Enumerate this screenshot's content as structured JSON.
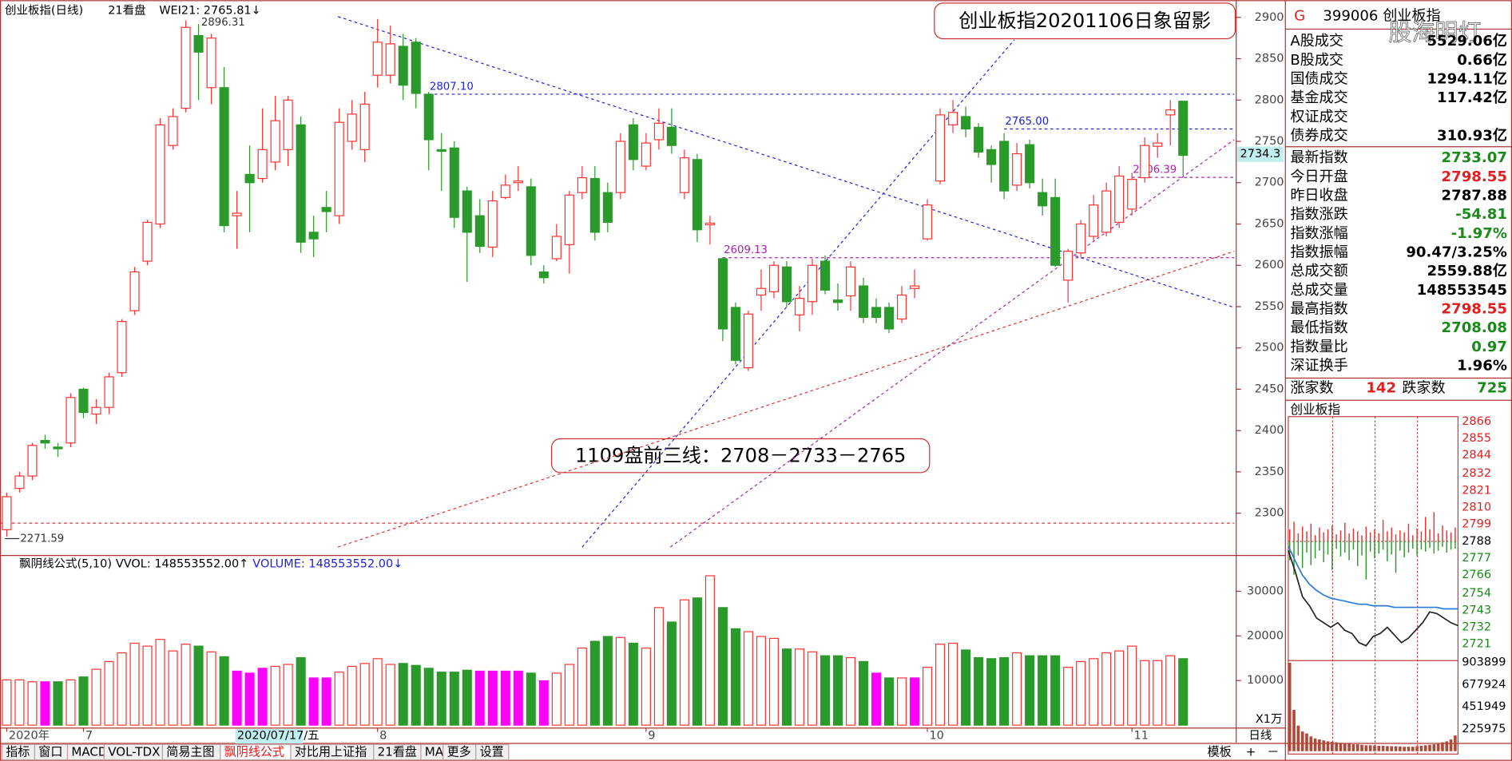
{
  "watermark": "股海明灯",
  "quote": {
    "flag": "G",
    "code": "399006 创业板指",
    "mini_title": "创业板指",
    "rows": [
      {
        "label": "A股成交",
        "value": "5529.06亿"
      },
      {
        "label": "B股成交",
        "value": "0.66亿"
      },
      {
        "label": "国债成交",
        "value": "1294.11亿"
      },
      {
        "label": "基金成交",
        "value": "117.42亿"
      },
      {
        "label": "权证成交"
      },
      {
        "label": "债券成交",
        "value": "310.93亿"
      },
      {
        "label": "最新指数",
        "value": "2733.07",
        "color": "#1a8a1a"
      },
      {
        "label": "今日开盘",
        "value": "2798.55",
        "color": "#e02020"
      },
      {
        "label": "昨日收盘",
        "value": "2787.88"
      },
      {
        "label": "指数涨跌",
        "value": "-54.81",
        "color": "#1a8a1a"
      },
      {
        "label": "指数涨幅",
        "value": "-1.97%",
        "color": "#1a8a1a"
      },
      {
        "label": "指数振幅",
        "value": "90.47/3.25%"
      },
      {
        "label": "总成交额",
        "value": "2559.88亿"
      },
      {
        "label": "总成交量",
        "value": "148553545"
      },
      {
        "label": "最高指数",
        "value": "2798.55",
        "color": "#e02020"
      },
      {
        "label": "最低指数",
        "value": "2708.08",
        "color": "#1a8a1a"
      },
      {
        "label": "指数量比",
        "value": "0.97",
        "color": "#1a8a1a"
      },
      {
        "label": "深证换手",
        "value": "1.96%"
      }
    ],
    "breadth": {
      "up_label": "涨家数",
      "up": 142,
      "down_label": "跌家数",
      "down": 725
    }
  },
  "toolbar": {
    "tabs": [
      "指标",
      "窗口",
      "MACD",
      "VOL-TDX",
      "简易主图",
      "飘阴线公式",
      "对比用上证指",
      "21看盘",
      "MA",
      "更多",
      "设置"
    ],
    "active": 5,
    "right": [
      "模板",
      "+",
      "－"
    ]
  },
  "chart_data": [
    {
      "type": "candlestick",
      "title": "创业板指(日线)",
      "legend_items": [
        "21看盘",
        "WEI21: 2765.81↓"
      ],
      "annotations": [
        "创业板指20201106日象留影",
        "1109盘前三线：2708－2733－2765"
      ],
      "up_color": "#ff3232",
      "down_color": "#2a9a2a",
      "categories": [
        "2020年",
        null,
        null,
        null,
        null,
        null,
        "7",
        null,
        null,
        null,
        null,
        null,
        null,
        null,
        null,
        null,
        null,
        null,
        null,
        null,
        null,
        null,
        null,
        null,
        null,
        null,
        null,
        null,
        null,
        "8",
        null,
        null,
        null,
        null,
        null,
        null,
        null,
        null,
        null,
        null,
        null,
        null,
        null,
        null,
        null,
        null,
        null,
        null,
        null,
        null,
        "9",
        null,
        null,
        null,
        null,
        null,
        null,
        null,
        null,
        null,
        null,
        null,
        null,
        null,
        null,
        null,
        null,
        null,
        null,
        null,
        null,
        null,
        "10",
        null,
        null,
        null,
        null,
        null,
        null,
        null,
        null,
        null,
        null,
        null,
        null,
        null,
        null,
        null,
        "11",
        null,
        null,
        null,
        null
      ],
      "cursor_label": "2020/07/17/五",
      "x_unit": "日线",
      "open": [
        2280,
        2330,
        2345,
        2388,
        2380,
        2385,
        2450,
        2420,
        2428,
        2470,
        2545,
        2605,
        2650,
        2745,
        2790,
        2878,
        2815,
        2815,
        2660,
        2710,
        2705,
        2725,
        2740,
        2770,
        2640,
        2670,
        2660,
        2750,
        2740,
        2830,
        2830,
        2865,
        2870,
        2807,
        2740,
        2742,
        2690,
        2660,
        2622,
        2682,
        2700,
        2695,
        2592,
        2608,
        2625,
        2688,
        2705,
        2688,
        2688,
        2770,
        2720,
        2752,
        2767,
        2688,
        2728,
        2649,
        2608,
        2549,
        2476,
        2564,
        2568,
        2598,
        2540,
        2556,
        2605,
        2558,
        2563,
        2575,
        2549,
        2549,
        2535,
        2572,
        2632,
        2702,
        2770,
        2780,
        2767,
        2740,
        2750,
        2697,
        2746,
        2688,
        2682,
        2582,
        2615,
        2635,
        2640,
        2652,
        2668,
        2706,
        2744,
        2782,
        2798.55
      ],
      "high": [
        2325,
        2350,
        2385,
        2395,
        2385,
        2445,
        2452,
        2438,
        2470,
        2535,
        2598,
        2655,
        2778,
        2790,
        2896.31,
        2892,
        2880,
        2840,
        2690,
        2745,
        2790,
        2805,
        2805,
        2780,
        2660,
        2690,
        2790,
        2800,
        2810,
        2898,
        2890,
        2880,
        2875,
        2810,
        2760,
        2750,
        2695,
        2680,
        2690,
        2710,
        2720,
        2705,
        2600,
        2650,
        2690,
        2720,
        2720,
        2700,
        2760,
        2778,
        2760,
        2790,
        2790,
        2740,
        2735,
        2660,
        2610,
        2555,
        2545,
        2595,
        2605,
        2605,
        2575,
        2608,
        2612,
        2578,
        2605,
        2585,
        2560,
        2555,
        2575,
        2595,
        2680,
        2790,
        2800,
        2792,
        2772,
        2745,
        2760,
        2748,
        2752,
        2705,
        2705,
        2620,
        2655,
        2685,
        2700,
        2720,
        2712,
        2755,
        2760,
        2800,
        2798.55
      ],
      "low": [
        2271.59,
        2325,
        2340,
        2378,
        2368,
        2380,
        2415,
        2408,
        2420,
        2465,
        2540,
        2600,
        2645,
        2740,
        2785,
        2800,
        2795,
        2640,
        2620,
        2640,
        2700,
        2715,
        2720,
        2615,
        2610,
        2640,
        2650,
        2740,
        2725,
        2815,
        2820,
        2800,
        2790,
        2715,
        2690,
        2645,
        2580,
        2615,
        2610,
        2680,
        2690,
        2600,
        2578,
        2605,
        2590,
        2680,
        2630,
        2640,
        2680,
        2715,
        2715,
        2740,
        2735,
        2680,
        2628,
        2625,
        2508,
        2480,
        2472,
        2545,
        2560,
        2550,
        2520,
        2540,
        2565,
        2545,
        2545,
        2530,
        2530,
        2518,
        2530,
        2560,
        2630,
        2698,
        2760,
        2755,
        2730,
        2700,
        2680,
        2690,
        2693,
        2660,
        2598,
        2555,
        2610,
        2630,
        2635,
        2645,
        2660,
        2700,
        2730,
        2745,
        2708.08
      ],
      "close": [
        2320,
        2345,
        2382,
        2385,
        2378,
        2440,
        2422,
        2428,
        2465,
        2532,
        2592,
        2652,
        2770,
        2780,
        2888,
        2858,
        2875,
        2648,
        2663,
        2700,
        2740,
        2775,
        2800,
        2628,
        2632,
        2665,
        2773,
        2783,
        2795,
        2870,
        2868,
        2818,
        2808,
        2752,
        2738,
        2658,
        2640,
        2623,
        2678,
        2697,
        2702,
        2612,
        2585,
        2635,
        2685,
        2706,
        2640,
        2652,
        2750,
        2728,
        2748,
        2772,
        2745,
        2730,
        2643,
        2651,
        2523,
        2485,
        2541,
        2572,
        2600,
        2556,
        2560,
        2600,
        2570,
        2555,
        2598,
        2537,
        2537,
        2523,
        2564,
        2575,
        2673,
        2782,
        2785,
        2765,
        2737,
        2722,
        2690,
        2735,
        2700,
        2672,
        2600,
        2617,
        2650,
        2673,
        2690,
        2708,
        2704,
        2745,
        2748,
        2788,
        2733.07
      ],
      "lines": [
        {
          "x": [
            33,
            96
          ],
          "y": [
            2807.1,
            2807.1
          ],
          "color": "#2222dd",
          "label": "2807.10"
        },
        {
          "x": [
            78,
            96
          ],
          "y": [
            2765,
            2765
          ],
          "color": "#2222dd",
          "label": "2765.00"
        },
        {
          "x": [
            56,
            96
          ],
          "y": [
            2609.13,
            2609.13
          ],
          "color": "#aa22aa",
          "label": "2609.13"
        },
        {
          "x": [
            88,
            96
          ],
          "y": [
            2706.39,
            2706.39
          ],
          "color": "#aa22aa",
          "label": "2706.39"
        },
        {
          "x": [
            -0.5,
            96
          ],
          "y": [
            2288,
            2288
          ],
          "color": "#e03030"
        },
        {
          "x": [
            25.9,
            96
          ],
          "y": [
            2901,
            2549
          ],
          "color": "#2222dd"
        },
        {
          "x": [
            45,
            78.8
          ],
          "y": [
            2259,
            2873
          ],
          "color": "#2222dd"
        },
        {
          "x": [
            51.9,
            96
          ],
          "y": [
            2259,
            2752
          ],
          "color": "#aa22aa"
        },
        {
          "x": [
            25.9,
            96
          ],
          "y": [
            2259,
            2617
          ],
          "color": "#e03030"
        }
      ],
      "price_tag": 2734.3,
      "ylim": [
        2250,
        2915
      ],
      "yticks": [
        2300,
        2350,
        2400,
        2450,
        2500,
        2550,
        2600,
        2650,
        2700,
        2750,
        2800,
        2850,
        2900
      ]
    },
    {
      "type": "bar",
      "title": "飘阴线公式(5,10)",
      "legend_items": [
        "VVOL: 148553552.00↑",
        "VOLUME: 148553552.00↓"
      ],
      "legend_colors": [
        "#000000",
        "#2222dd"
      ],
      "unit_label": "X1万",
      "values": [
        10150,
        10150,
        9720,
        9720,
        9720,
        10150,
        10800,
        12530,
        14260,
        16200,
        18360,
        17710,
        19220,
        16630,
        18140,
        17710,
        16420,
        15340,
        12100,
        11660,
        12740,
        13180,
        13610,
        15120,
        10580,
        10580,
        11880,
        13180,
        13820,
        14900,
        13610,
        13820,
        13390,
        12740,
        11880,
        11880,
        12310,
        12100,
        12100,
        12100,
        12100,
        11660,
        9940,
        11660,
        13610,
        17280,
        18790,
        19870,
        19660,
        18360,
        17280,
        26350,
        23110,
        28080,
        28510,
        33480,
        26350,
        21600,
        20950,
        19870,
        19440,
        17060,
        17060,
        16420,
        15550,
        15550,
        15120,
        14260,
        11660,
        10580,
        10580,
        10580,
        12960,
        18140,
        18360,
        16850,
        15120,
        14900,
        15120,
        16200,
        15550,
        15550,
        15550,
        12960,
        14260,
        14900,
        16200,
        16630,
        17710,
        14470,
        14470,
        15550,
        14900
      ],
      "highlight": {
        "color": "#ff00ff",
        "indices": [
          3,
          18,
          19,
          20,
          24,
          25,
          37,
          38,
          39,
          40,
          42,
          68,
          71
        ]
      },
      "ylim": [
        0,
        35000
      ],
      "yticks": [
        10000,
        20000,
        30000
      ]
    },
    {
      "type": "line",
      "x": [
        0,
        10,
        20,
        30,
        40,
        50,
        60,
        70,
        80,
        90,
        100,
        110,
        120,
        130,
        140,
        150,
        160,
        170,
        180,
        190,
        200,
        210,
        220,
        230,
        240
      ],
      "xlim": [
        0,
        240
      ],
      "series": [
        {
          "color": "#222222",
          "values": [
            2782,
            2768,
            2752,
            2746,
            2738,
            2735,
            2732,
            2735,
            2730,
            2728,
            2722,
            2720,
            2726,
            2728,
            2732,
            2727,
            2722,
            2725,
            2730,
            2735,
            2742,
            2741,
            2738,
            2735,
            2733.07
          ]
        },
        {
          "color": "#2a7ad8",
          "values": [
            2785,
            2775,
            2766,
            2760,
            2756,
            2753,
            2751,
            2750,
            2749,
            2748,
            2747,
            2747,
            2746,
            2746,
            2746,
            2745,
            2745,
            2745,
            2745,
            2745,
            2745,
            2745,
            2744,
            2744,
            2744
          ]
        }
      ],
      "baseline": 2787.88,
      "ylim": [
        2716,
        2871
      ],
      "yticks": [
        2866,
        2855,
        2844,
        2832,
        2821,
        2810,
        2799,
        2788,
        2777,
        2766,
        2754,
        2743,
        2732,
        2721
      ]
    },
    {
      "type": "bar",
      "ylim": [
        -115,
        132
      ],
      "series": [
        {
          "color": "#ee3030",
          "values": [
            12,
            20,
            8,
            15,
            10,
            18,
            6,
            14,
            9,
            12,
            16,
            7,
            11,
            19,
            8,
            13,
            10,
            6,
            15,
            9,
            12,
            8,
            22,
            10,
            14,
            7,
            11,
            9,
            18,
            6,
            13,
            10,
            25,
            12,
            30,
            8,
            16,
            11,
            9,
            14
          ]
        },
        {
          "color": "#2a9a2a",
          "values": [
            -20,
            -35,
            -15,
            -28,
            -12,
            -25,
            -18,
            -10,
            -22,
            -14,
            -30,
            -8,
            -16,
            -12,
            -20,
            -9,
            -26,
            -15,
            -40,
            -11,
            -18,
            -13,
            -9,
            -21,
            -14,
            -33,
            -10,
            -17,
            -12,
            -8,
            -15,
            -9,
            -11,
            -7,
            -13,
            -10,
            -6,
            -12,
            -9,
            -8
          ]
        }
      ]
    },
    {
      "type": "bar",
      "color": "#b04838",
      "values": [
        900000,
        420000,
        260000,
        200000,
        180000,
        150000,
        130000,
        120000,
        110000,
        100000,
        95000,
        90000,
        85000,
        80000,
        75000,
        70000,
        70000,
        65000,
        60000,
        60000,
        58000,
        55000,
        55000,
        52000,
        50000,
        50000,
        48000,
        45000,
        45000,
        45000,
        50000,
        55000,
        60000,
        65000,
        70000,
        80000,
        90000,
        100000,
        120000,
        160000
      ],
      "ylim": [
        0,
        923000
      ],
      "yticks": [
        {
          "value": 903899,
          "label": "903899"
        },
        {
          "value": 677924,
          "label": "677924"
        },
        {
          "value": 451949,
          "label": "451949"
        },
        {
          "value": 225975,
          "label": "225975"
        }
      ]
    }
  ]
}
